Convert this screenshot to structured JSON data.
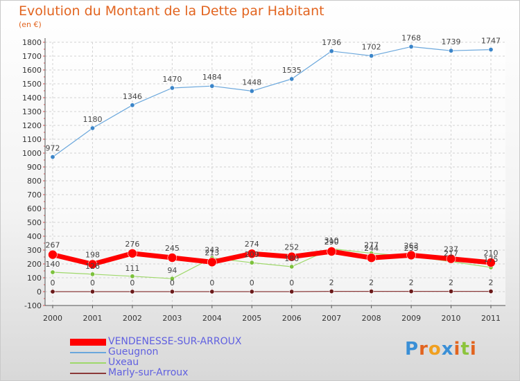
{
  "title": "Evolution du Montant de la Dette par Habitant",
  "subtitle": "(en €)",
  "logo": {
    "text": "Proxiti",
    "colors": [
      "#3a8fd6",
      "#e2641f",
      "#f0a020",
      "#3a8fd6",
      "#e2641f",
      "#8cc43c",
      "#e2641f"
    ]
  },
  "chart_data": {
    "type": "line",
    "title": "Evolution du Montant de la Dette par Habitant",
    "ylabel": "(en €)",
    "xlabel": "",
    "x": [
      "2000",
      "2001",
      "2002",
      "2003",
      "2004",
      "2005",
      "2006",
      "2007",
      "2008",
      "2009",
      "2010",
      "2011"
    ],
    "ylim": [
      -100,
      1800
    ],
    "yticks": [
      "-100",
      "0",
      "100",
      "200",
      "300",
      "400",
      "500",
      "600",
      "700",
      "800",
      "900",
      "1000",
      "1100",
      "1200",
      "1300",
      "1400",
      "1500",
      "1600",
      "1700",
      "1800"
    ],
    "grid": true,
    "legend_position": "bottom-left",
    "series": [
      {
        "name": "VENDENESSE-SUR-ARROUX",
        "color": "#ff0000",
        "values": [
          267,
          198,
          276,
          245,
          213,
          274,
          252,
          290,
          244,
          263,
          237,
          210
        ],
        "labels": [
          "267",
          "198",
          "276",
          "245",
          "213",
          "274",
          "252",
          "290",
          "244",
          "263",
          "237",
          "210"
        ]
      },
      {
        "name": "Gueugnon",
        "color": "#6aa7dc",
        "values": [
          972,
          1180,
          1346,
          1470,
          1484,
          1448,
          1535,
          1736,
          1702,
          1768,
          1739,
          1747
        ],
        "labels": [
          "972",
          "1180",
          "1346",
          "1470",
          "1484",
          "1448",
          "1535",
          "1736",
          "1702",
          "1768",
          "1739",
          "1747"
        ]
      },
      {
        "name": "Uxeau",
        "color": "#9ed86a",
        "values": [
          140,
          126,
          111,
          94,
          243,
          209,
          180,
          310,
          277,
          255,
          217,
          175
        ],
        "labels": [
          "140",
          "126",
          "111",
          "94",
          "243",
          "209",
          "180",
          "310",
          "277",
          "255",
          "217",
          "175"
        ]
      },
      {
        "name": "Marly-sur-Arroux",
        "color": "#8b3a3a",
        "values": [
          0,
          0,
          0,
          0,
          0,
          0,
          0,
          2,
          2,
          2,
          2,
          2
        ],
        "labels": [
          "0",
          "0",
          "0",
          "0",
          "0",
          "0",
          "0",
          "2",
          "2",
          "2",
          "2",
          "2"
        ]
      }
    ]
  }
}
